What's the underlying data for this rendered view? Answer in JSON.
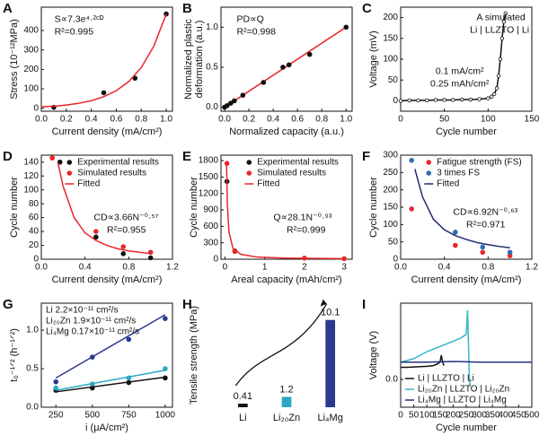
{
  "chart_data": [
    {
      "type": "scatter",
      "panel": "A",
      "xlabel": "Current density (mA/cm²)",
      "ylabel": "Stress (10⁻¹²MPa)",
      "xlim": [
        0,
        1.05
      ],
      "ylim": [
        -15,
        520
      ],
      "xticks": [
        {
          "value": 0,
          "label": "0.0"
        },
        0.2,
        0.4,
        0.6,
        0.8,
        {
          "value": 1,
          "label": "1.0"
        }
      ],
      "yticks": [
        0,
        100,
        200,
        300,
        400
      ],
      "annotations": [
        "S∝7.3e⁴·²ᶜᴰ",
        "R²=0.995"
      ],
      "series": [
        {
          "color": "#111111",
          "mode": "markers",
          "x": [
            0.1,
            0.5,
            0.75,
            1.0
          ],
          "values": [
            5,
            80,
            155,
            485
          ]
        },
        {
          "color": "#e8262b",
          "mode": "line",
          "x": [
            0,
            0.1,
            0.2,
            0.3,
            0.4,
            0.5,
            0.6,
            0.7,
            0.8,
            0.9,
            1.0
          ],
          "values": [
            7.3,
            11.1,
            16.9,
            25.7,
            39.1,
            59.5,
            90.5,
            137.7,
            209.5,
            318.8,
            485
          ]
        }
      ]
    },
    {
      "type": "scatter",
      "panel": "B",
      "xlabel": "Normalized capacity (a.u.)",
      "ylabel": [
        "Normalized plastic",
        "deformation (a.u.)"
      ],
      "xlim": [
        -0.03,
        1.05
      ],
      "ylim": [
        -0.05,
        1.25
      ],
      "xticks": [
        {
          "value": 0,
          "label": "0.0"
        },
        0.2,
        0.4,
        0.6,
        0.8,
        {
          "value": 1,
          "label": "1.0"
        }
      ],
      "yticks": [
        {
          "value": 0,
          "label": "0.0"
        },
        0.5,
        {
          "value": 1,
          "label": "1.0"
        }
      ],
      "annotations": [
        "PD∝Q",
        "R²=0.998"
      ],
      "series": [
        {
          "color": "#e8262b",
          "mode": "line",
          "x": [
            0,
            1
          ],
          "values": [
            0,
            1
          ]
        },
        {
          "color": "#111111",
          "mode": "markers",
          "x": [
            0,
            0.02,
            0.05,
            0.08,
            0.15,
            0.32,
            0.48,
            0.53,
            0.7,
            1.0
          ],
          "values": [
            0,
            0.02,
            0.05,
            0.08,
            0.15,
            0.31,
            0.5,
            0.53,
            0.66,
            1.0
          ]
        }
      ]
    },
    {
      "type": "scatter",
      "panel": "C",
      "xlabel": "Cycle number",
      "ylabel": "Voltage (mV)",
      "xlim": [
        0,
        150
      ],
      "ylim": [
        -25,
        225
      ],
      "xticks": [
        0,
        50,
        100,
        150
      ],
      "yticks": [
        0,
        50,
        100,
        150,
        200
      ],
      "annotations": [
        "A simulated",
        "Li | LLZTO | Li",
        "0.1 mA/cm²",
        "0.25 mAh/cm²"
      ],
      "series": [
        {
          "color": "#111111",
          "mode": "lines+markers",
          "marker": "open",
          "x": [
            0,
            10,
            20,
            30,
            40,
            50,
            60,
            70,
            80,
            90,
            100,
            104,
            107,
            110,
            112,
            114,
            116,
            118,
            120
          ],
          "values": [
            0,
            1,
            1,
            1,
            2,
            2,
            2,
            3,
            3,
            4,
            6,
            10,
            16,
            30,
            60,
            100,
            150,
            190,
            210
          ]
        }
      ]
    },
    {
      "type": "scatter",
      "panel": "D",
      "xlabel": "Current density (mA/cm²)",
      "ylabel": "Cycle number",
      "xlim": [
        0,
        1.2
      ],
      "ylim": [
        0,
        150
      ],
      "xticks": [
        {
          "value": 0,
          "label": "0.0"
        },
        0.4,
        0.8,
        1.2
      ],
      "yticks": [
        0,
        20,
        40,
        60,
        80,
        100,
        120,
        140
      ],
      "legend": "upper right",
      "annotations": [
        "CD∝3.66N⁻⁰·⁵⁷",
        "R²=0.955"
      ],
      "series": [
        {
          "name": "Experimental results",
          "color": "#111111",
          "mode": "markers",
          "x": [
            0.17,
            0.5,
            0.75,
            1.0
          ],
          "values": [
            140,
            32,
            8,
            2
          ]
        },
        {
          "name": "Simulated results",
          "color": "#e8262b",
          "mode": "markers",
          "x": [
            0.1,
            0.5,
            0.75,
            1.0
          ],
          "values": [
            146,
            40,
            18,
            10
          ]
        },
        {
          "name": "Fitted",
          "color": "#e8262b",
          "mode": "line",
          "x": [
            0.15,
            0.2,
            0.3,
            0.4,
            0.5,
            0.6,
            0.7,
            0.8,
            0.9,
            1.0
          ],
          "values": [
            140,
            105,
            60,
            38,
            27,
            20,
            15,
            12,
            10,
            8
          ]
        }
      ]
    },
    {
      "type": "scatter",
      "panel": "E",
      "xlabel": "Areal capacity (mAh/cm²)",
      "ylabel": "Cycle number",
      "xlim": [
        -0.1,
        3.2
      ],
      "ylim": [
        0,
        1900
      ],
      "xticks": [
        0,
        1,
        2,
        3
      ],
      "yticks": [
        0,
        300,
        600,
        900,
        1200,
        1500,
        1800
      ],
      "legend": "upper right",
      "annotations": [
        "Q∝28.1N⁻⁰·⁹³",
        "R²=0.999"
      ],
      "series": [
        {
          "name": "Experimental results",
          "color": "#111111",
          "mode": "markers",
          "x": [
            0.05,
            0.25
          ],
          "values": [
            1420,
            150
          ]
        },
        {
          "name": "Simulated results",
          "color": "#e8262b",
          "mode": "markers",
          "x": [
            0.05,
            0.25,
            2,
            3
          ],
          "values": [
            1750,
            140,
            20,
            10
          ]
        },
        {
          "name": "Fitted",
          "color": "#e8262b",
          "mode": "line",
          "x": [
            0.04,
            0.06,
            0.1,
            0.2,
            0.4,
            0.8,
            1.5,
            3
          ],
          "values": [
            1750,
            1000,
            500,
            200,
            90,
            40,
            20,
            10
          ]
        }
      ]
    },
    {
      "type": "scatter",
      "panel": "F",
      "xlabel": "Current density (mA/cm²)",
      "ylabel": "Cycle number",
      "xlim": [
        0,
        1.2
      ],
      "ylim": [
        0,
        300
      ],
      "xticks": [
        {
          "value": 0,
          "label": "0.0"
        },
        0.4,
        0.8,
        1.2
      ],
      "yticks": [
        0,
        50,
        100,
        150,
        200,
        250,
        300
      ],
      "legend": "upper right",
      "annotations": [
        "CD∝6.92N⁻⁰·⁶³",
        "R²=0.971"
      ],
      "series": [
        {
          "name": "Fatigue strength (FS)",
          "color": "#e8262b",
          "mode": "markers",
          "x": [
            0.1,
            0.5,
            0.75,
            1.0
          ],
          "values": [
            145,
            40,
            20,
            10
          ]
        },
        {
          "name": "3 times FS",
          "color": "#2f6db5",
          "mode": "markers",
          "x": [
            0.1,
            0.5,
            0.75,
            1.0
          ],
          "values": [
            285,
            78,
            35,
            20
          ]
        },
        {
          "name": "Fitted",
          "color": "#1f2a6e",
          "mode": "line",
          "x": [
            0.13,
            0.2,
            0.3,
            0.4,
            0.5,
            0.6,
            0.7,
            0.8,
            0.9,
            1.0
          ],
          "values": [
            260,
            180,
            115,
            85,
            68,
            57,
            48,
            42,
            37,
            33
          ]
        }
      ]
    },
    {
      "type": "scatter",
      "panel": "G",
      "xlabel": "i (μA/cm²)",
      "ylabel": "t₀⁻¹ᐟ² (h⁻¹ᐟ²)",
      "xlim": [
        150,
        1050
      ],
      "ylim": [
        0,
        1.35
      ],
      "xticks": [
        250,
        500,
        750,
        1000
      ],
      "yticks": [
        {
          "value": 0,
          "label": "0.0"
        },
        0.5,
        {
          "value": 1,
          "label": "1.0"
        }
      ],
      "legend": "upper left",
      "legend_markers": false,
      "series": [
        {
          "name": "Li 2.2×10⁻¹¹ cm²/s",
          "color": "#111111",
          "mode": "markers",
          "x": [
            250,
            500,
            750,
            1000
          ],
          "values": [
            0.22,
            0.25,
            0.32,
            0.38
          ]
        },
        {
          "name": "Li₂₀Zn 1.9×10⁻¹¹ cm²/s",
          "color": "#2aa7c4",
          "mode": "markers",
          "x": [
            250,
            500,
            750,
            1000
          ],
          "values": [
            0.25,
            0.3,
            0.38,
            0.5
          ]
        },
        {
          "name": "Li₄Mg 0.17×10⁻¹¹ cm²/s",
          "color": "#2b3990",
          "mode": "markers",
          "x": [
            250,
            500,
            750,
            1000
          ],
          "values": [
            0.33,
            0.65,
            0.88,
            1.15
          ]
        },
        {
          "color": "#111111",
          "mode": "line",
          "x": [
            250,
            1000
          ],
          "values": [
            0.2,
            0.39
          ]
        },
        {
          "color": "#2aa7c4",
          "mode": "line",
          "x": [
            250,
            1000
          ],
          "values": [
            0.22,
            0.48
          ]
        },
        {
          "color": "#2b3990",
          "mode": "line",
          "x": [
            250,
            1000
          ],
          "values": [
            0.38,
            1.2
          ]
        }
      ]
    },
    {
      "type": "bar",
      "panel": "H",
      "ylabel": "Tensile strength (MPa)",
      "categories": [
        "Li",
        "Li₂₀Zn",
        "Li₄Mg"
      ],
      "values": [
        0.41,
        1.2,
        10.1
      ],
      "colors": [
        "#111111",
        "#2aa7c4",
        "#2b3990"
      ],
      "ylim": [
        0,
        11
      ]
    },
    {
      "type": "scatter",
      "panel": "I",
      "xlabel": "Cycle number",
      "ylabel": "Voltage (V)",
      "xlim": [
        0,
        500
      ],
      "ylim": [
        -0.08,
        0.22
      ],
      "xticks": [
        0,
        50,
        100,
        150,
        200,
        250,
        300,
        350,
        400,
        450,
        500
      ],
      "yticks": [
        {
          "value": 0,
          "label": "0.0"
        }
      ],
      "legend": "lower left",
      "series": [
        {
          "name": "Li | LLZTO | Li",
          "color": "#111111",
          "mode": "line",
          "x": [
            0,
            25,
            50,
            75,
            100,
            125,
            140,
            150,
            155,
            160,
            165
          ],
          "values": [
            0.035,
            0.035,
            0.036,
            0.037,
            0.038,
            0.04,
            0.045,
            0.05,
            0.07,
            0.05,
            0.04
          ]
        },
        {
          "name": "Li₂₀Zn | LLZTO | Li₂₀Zn",
          "color": "#3ab4c8",
          "mode": "line",
          "x": [
            0,
            50,
            100,
            150,
            200,
            230,
            250,
            255,
            258,
            262,
            265
          ],
          "values": [
            0.05,
            0.06,
            0.08,
            0.095,
            0.11,
            0.12,
            0.13,
            0.2,
            0.12,
            0.0,
            -0.02
          ]
        },
        {
          "name": "Li₄Mg | LLZTO | Li₄Mg",
          "color": "#27307f",
          "mode": "line",
          "x": [
            0,
            100,
            200,
            300,
            400,
            500
          ],
          "values": [
            0.05,
            0.05,
            0.052,
            0.05,
            0.05,
            0.05
          ]
        }
      ]
    }
  ]
}
